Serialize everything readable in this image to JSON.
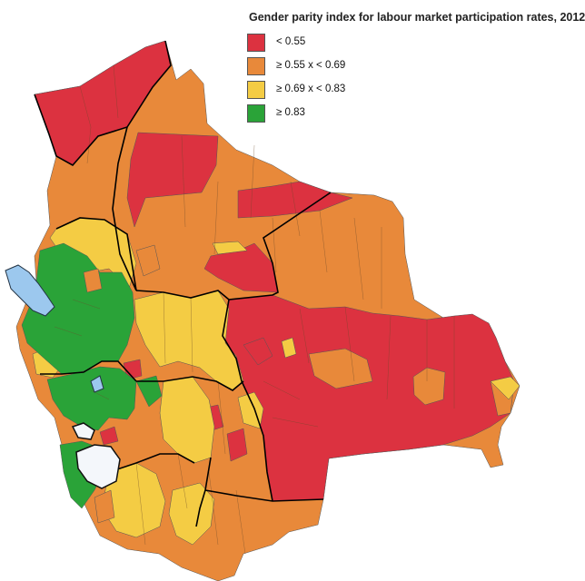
{
  "title": "Gender parity index for labour market participation rates, 2012",
  "legend": [
    {
      "label": "< 0.55",
      "color": "#dc3240"
    },
    {
      "label": "≥ 0.55 x < 0.69",
      "color": "#e8893a"
    },
    {
      "label": "≥ 0.69 x < 0.83",
      "color": "#f4cc44"
    },
    {
      "label": "≥ 0.83",
      "color": "#2aa338"
    }
  ]
}
